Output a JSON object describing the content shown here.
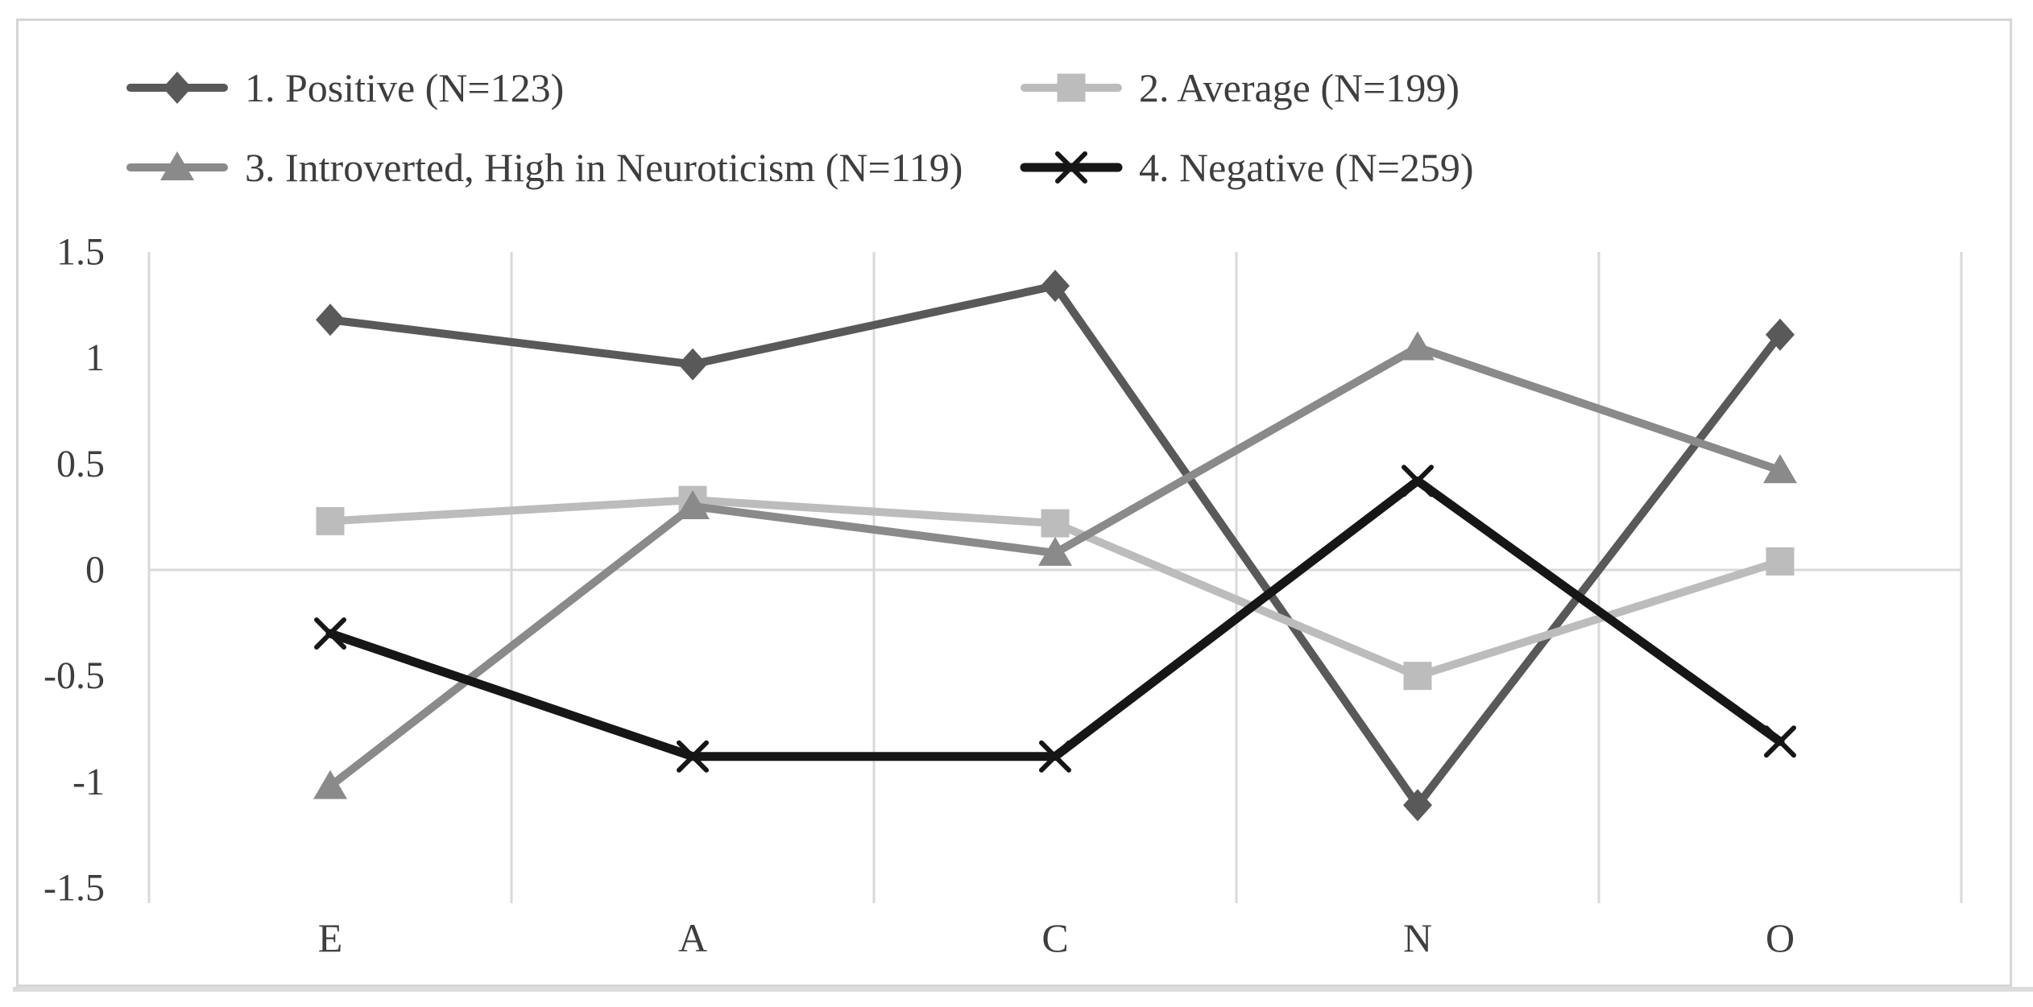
{
  "figure": {
    "background_color": "#ffffff",
    "frame_color": "#d6d6d6",
    "bottom_rule_color": "#dcdcdc",
    "grid_color": "#d9d9d9",
    "axis_text_color": "#3e3e3e"
  },
  "chart_data": {
    "type": "line",
    "title": "",
    "xlabel": "",
    "ylabel": "",
    "categories": [
      "E",
      "A",
      "C",
      "N",
      "O"
    ],
    "series": [
      {
        "name": "1. Positive (N=123)",
        "marker": "diamond",
        "color": "#595959",
        "values": [
          1.18,
          0.97,
          1.34,
          -1.11,
          1.11
        ]
      },
      {
        "name": "2. Average (N=199)",
        "marker": "square",
        "color": "#bcbcbc",
        "values": [
          0.23,
          0.33,
          0.22,
          -0.5,
          0.04
        ]
      },
      {
        "name": "3. Introverted, High in Neuroticism (N=119)",
        "marker": "triangle",
        "color": "#8a8a8a",
        "values": [
          -1.02,
          0.3,
          0.08,
          1.05,
          0.47
        ]
      },
      {
        "name": "4. Negative (N=259)",
        "marker": "x",
        "color": "#161616",
        "values": [
          -0.3,
          -0.88,
          -0.88,
          0.42,
          -0.81
        ]
      }
    ],
    "yticks": [
      "1.5",
      "1",
      "0.5",
      "0",
      "-0.5",
      "-1",
      "-1.5"
    ],
    "ytick_values": [
      1.5,
      1,
      0.5,
      0,
      -0.5,
      -1,
      -1.5
    ],
    "ylim": [
      -1.5,
      1.5
    ],
    "grid": {
      "vertical_gridlines": true,
      "horizontal_gridline_at_zero_only": true
    },
    "legend_position": "top",
    "legend_columns": 2
  }
}
